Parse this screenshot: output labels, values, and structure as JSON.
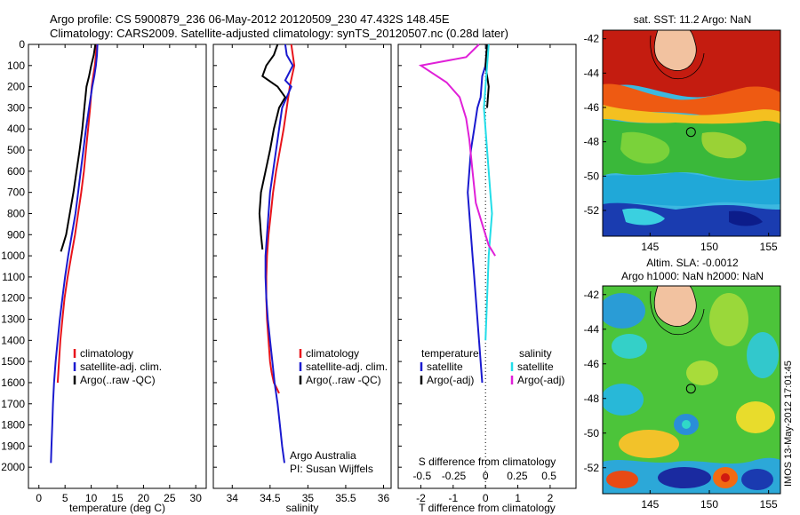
{
  "header": {
    "line1": "Argo profile: CS 5900879_236 06-May-2012 20120509_230 47.432S 148.45E",
    "line2": "Climatology: CARS2009. Satellite-adjusted climatology: synTS_20120507.nc (0.28d later)"
  },
  "credits": {
    "org": "Argo Australia",
    "pi": "PI: Susan Wijffels",
    "stamp": "IMOS 13-May-2012 17:01:45"
  },
  "colors": {
    "climatology": "#e8141b",
    "satellite": "#1a1acf",
    "argo": "#000000",
    "t_sat": "#1a1acf",
    "t_argo": "#000000",
    "s_sat": "#22dde8",
    "s_argo": "#e020d8"
  },
  "chart_data": [
    {
      "type": "line",
      "name": "temperature-profile",
      "xlabel": "temperature (deg C)",
      "xlim": [
        -2,
        32
      ],
      "ylim": [
        2100,
        0
      ],
      "xticks": [
        0,
        5,
        10,
        15,
        20,
        25,
        30
      ],
      "yticks": [
        0,
        100,
        200,
        300,
        400,
        500,
        600,
        700,
        800,
        900,
        1000,
        1100,
        1200,
        1300,
        1400,
        1500,
        1600,
        1700,
        1800,
        1900,
        2000
      ],
      "legend": [
        "climatology",
        "satellite-adj. clim.",
        "Argo(..raw -QC)"
      ],
      "legend_position": "lower-center",
      "series": [
        {
          "name": "climatology",
          "color": "#e8141b",
          "x": [
            11.0,
            10.9,
            10.7,
            10.4,
            10.1,
            9.8,
            9.4,
            9.0,
            8.6,
            8.1,
            7.5,
            6.9,
            6.2,
            5.5,
            4.9,
            4.5,
            4.1,
            3.6
          ],
          "y": [
            0,
            50,
            100,
            150,
            200,
            300,
            400,
            500,
            600,
            700,
            800,
            900,
            1000,
            1100,
            1200,
            1300,
            1400,
            1600
          ]
        },
        {
          "name": "satellite-adj. clim.",
          "color": "#1a1acf",
          "x": [
            11.2,
            11.1,
            10.9,
            10.6,
            10.2,
            9.6,
            9.0,
            8.5,
            8.0,
            7.5,
            7.0,
            6.3,
            5.6,
            5.0,
            4.5,
            4.0,
            3.6,
            3.2,
            2.9,
            2.7,
            2.55,
            2.4,
            2.3
          ],
          "y": [
            0,
            50,
            100,
            150,
            200,
            300,
            400,
            500,
            600,
            700,
            800,
            900,
            1000,
            1100,
            1200,
            1300,
            1400,
            1500,
            1600,
            1700,
            1800,
            1900,
            1980
          ]
        },
        {
          "name": "Argo(..raw -QC)",
          "color": "#000000",
          "x": [
            10.8,
            10.5,
            10.0,
            9.6,
            9.1,
            8.7,
            8.3,
            7.8,
            7.2,
            6.6,
            5.9,
            5.2,
            4.6,
            4.2
          ],
          "y": [
            0,
            50,
            100,
            150,
            200,
            300,
            400,
            500,
            600,
            700,
            800,
            900,
            950,
            980
          ]
        }
      ]
    },
    {
      "type": "line",
      "name": "salinity-profile",
      "xlabel": "salinity",
      "xlim": [
        33.75,
        36.1
      ],
      "ylim": [
        2100,
        0
      ],
      "xticks": [
        34,
        34.5,
        35,
        35.5,
        36
      ],
      "legend": [
        "climatology",
        "satellite-adj. clim.",
        "Argo(..raw -QC)"
      ],
      "legend_position": "lower-center",
      "series": [
        {
          "name": "climatology",
          "color": "#e8141b",
          "x": [
            34.78,
            34.8,
            34.82,
            34.79,
            34.76,
            34.72,
            34.68,
            34.63,
            34.58,
            34.54,
            34.51,
            34.48,
            34.46,
            34.45,
            34.45,
            34.46,
            34.48,
            34.5,
            34.52,
            34.55,
            34.58,
            34.62
          ],
          "y": [
            0,
            50,
            100,
            150,
            200,
            300,
            400,
            500,
            600,
            700,
            800,
            900,
            1000,
            1100,
            1200,
            1300,
            1400,
            1500,
            1550,
            1600,
            1620,
            1650
          ]
        },
        {
          "name": "satellite-adj. clim.",
          "color": "#1a1acf",
          "x": [
            34.7,
            34.72,
            34.8,
            34.7,
            34.78,
            34.66,
            34.62,
            34.58,
            34.54,
            34.5,
            34.48,
            34.46,
            34.44,
            34.44,
            34.45,
            34.47,
            34.5,
            34.53,
            34.56,
            34.6,
            34.63,
            34.66,
            34.69
          ],
          "y": [
            0,
            50,
            100,
            170,
            200,
            300,
            400,
            500,
            600,
            700,
            800,
            900,
            1000,
            1100,
            1200,
            1300,
            1400,
            1500,
            1600,
            1700,
            1800,
            1900,
            1980
          ]
        },
        {
          "name": "Argo(..raw -QC)",
          "color": "#000000",
          "x": [
            34.6,
            34.55,
            34.45,
            34.4,
            34.6,
            34.7,
            34.62,
            34.55,
            34.5,
            34.44,
            34.38,
            34.36,
            34.38,
            34.4
          ],
          "y": [
            0,
            50,
            100,
            150,
            200,
            250,
            300,
            400,
            500,
            600,
            700,
            800,
            900,
            970
          ]
        }
      ]
    },
    {
      "type": "line",
      "name": "difference-profile",
      "xlabel": "T difference from climatology",
      "x2label": "S difference from climatology",
      "xlim": [
        -2.7,
        2.8
      ],
      "ylim": [
        2100,
        0
      ],
      "xticks": [
        -2,
        -1,
        0,
        1,
        2
      ],
      "x2ticks": [
        -0.5,
        -0.25,
        0,
        0.25,
        0.5
      ],
      "legend_titles": [
        "temperature",
        "salinity"
      ],
      "legend": [
        "satellite",
        "Argo(-adj)",
        "satellite",
        "Argo(-adj)"
      ],
      "legend_position": "lower-center",
      "series": [
        {
          "name": "satellite",
          "group": "temperature",
          "color": "#1a1acf",
          "x": [
            0.05,
            0.0,
            -0.1,
            -0.15,
            -0.25,
            -0.35,
            -0.45,
            -0.5,
            -0.55,
            -0.5,
            -0.45,
            -0.4,
            -0.35,
            -0.3,
            -0.2,
            -0.1
          ],
          "y": [
            0,
            100,
            150,
            250,
            300,
            400,
            500,
            600,
            700,
            800,
            900,
            1000,
            1100,
            1200,
            1400,
            1600
          ]
        },
        {
          "name": "Argo(-adj)",
          "group": "temperature",
          "color": "#000000",
          "x": [
            0.05,
            0.0,
            0.1,
            0.05
          ],
          "y": [
            0,
            100,
            200,
            300
          ]
        },
        {
          "name": "satellite",
          "group": "salinity",
          "color": "#22dde8",
          "x": [
            0.1,
            0.05,
            0.0,
            -0.05,
            0.0,
            0.05,
            0.1,
            0.15,
            0.2,
            0.15,
            0.1,
            0.05,
            0.0
          ],
          "y": [
            0,
            100,
            200,
            300,
            400,
            500,
            600,
            700,
            800,
            900,
            1000,
            1200,
            1400
          ]
        },
        {
          "name": "Argo(-adj)",
          "group": "salinity",
          "color": "#e020d8",
          "x": [
            -0.2,
            -0.6,
            -2.0,
            -1.2,
            -0.8,
            -0.6,
            -0.5,
            -0.4,
            -0.3,
            -0.1,
            0.1,
            0.3
          ],
          "y": [
            0,
            60,
            100,
            180,
            250,
            350,
            450,
            600,
            750,
            850,
            950,
            1000
          ]
        }
      ]
    },
    {
      "type": "heatmap",
      "name": "sst-map",
      "title": "sat. SST: 11.2 Argo: NaN",
      "xlim": [
        141,
        156
      ],
      "ylim": [
        -53.5,
        -41.5
      ],
      "xticks": [
        145,
        150,
        155
      ],
      "yticks": [
        -42,
        -44,
        -46,
        -48,
        -50,
        -52
      ],
      "float_position": [
        148.45,
        -47.432
      ]
    },
    {
      "type": "heatmap",
      "name": "sla-map",
      "title_line1": "Altim. SLA: -0.0012",
      "title_line2": "Argo h1000: NaN h2000: NaN",
      "xlim": [
        141,
        156
      ],
      "ylim": [
        -53.5,
        -41.5
      ],
      "xticks": [
        145,
        150,
        155
      ],
      "yticks": [
        -42,
        -44,
        -46,
        -48,
        -50,
        -52
      ],
      "float_position": [
        148.45,
        -47.432
      ]
    }
  ]
}
